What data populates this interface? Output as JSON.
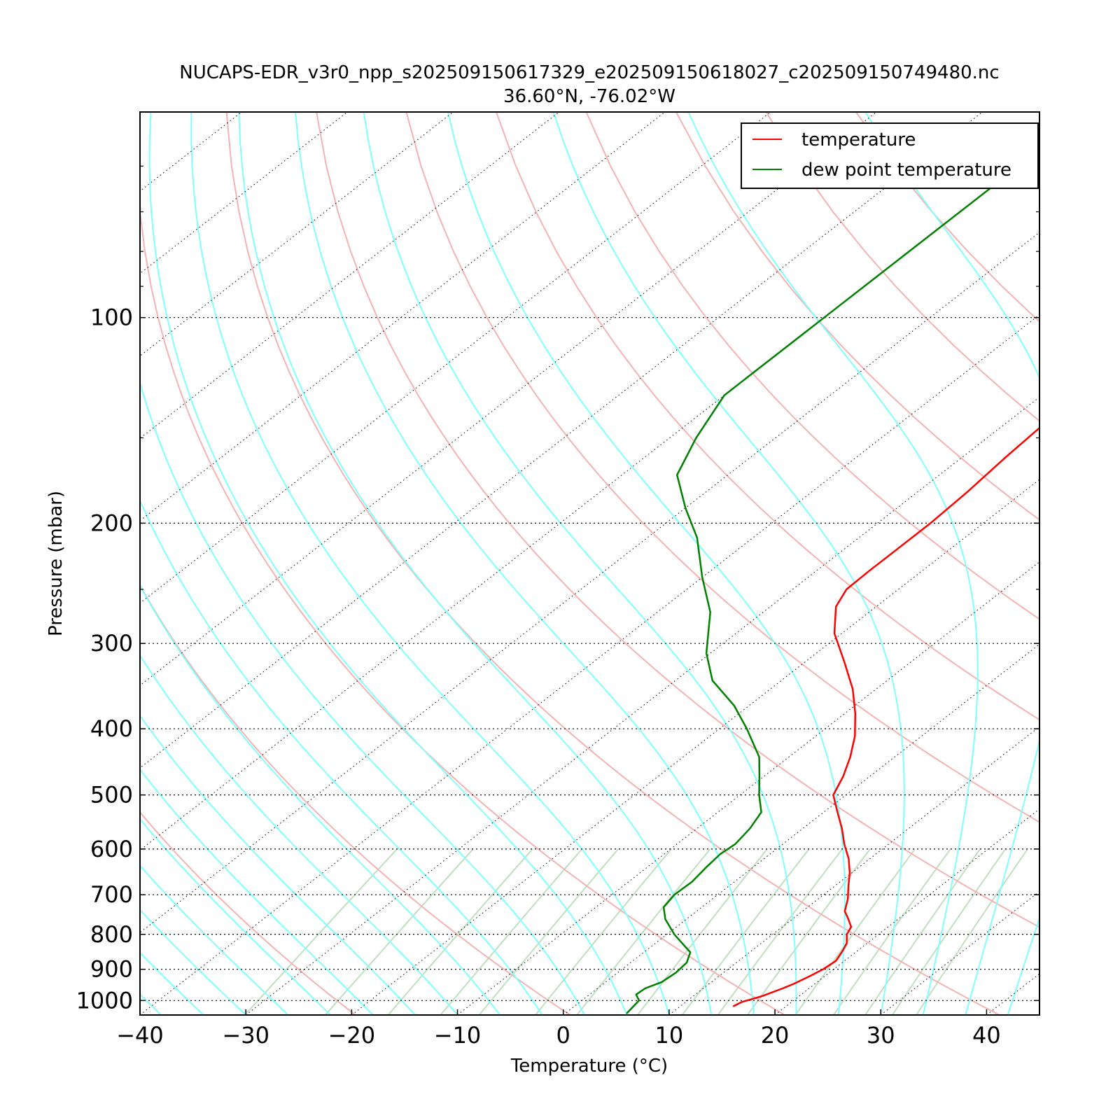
{
  "chart_data": {
    "type": "line",
    "title": "NUCAPS-EDR_v3r0_npp_s202509150617329_e202509150618027_c202509150749480.nc",
    "subtitle": "36.60°N, -76.02°W",
    "xlabel": "Temperature (°C)",
    "ylabel": "Pressure (mbar)",
    "xlim": [
      -40,
      45
    ],
    "ylim": [
      1050,
      50
    ],
    "y_scale": "log",
    "x_ticks": [
      "−40",
      "−30",
      "−20",
      "−10",
      "0",
      "10",
      "20",
      "30",
      "40"
    ],
    "y_ticks": [
      "100",
      "200",
      "300",
      "400",
      "500",
      "600",
      "700",
      "800",
      "900",
      "1000"
    ],
    "grid": "dotted horizontal at labeled pressures",
    "legend_position": "top-right",
    "skew_slope_degC_per_ln_p": 36,
    "background_lines": {
      "isotherms_color": "#bfdfbf",
      "dry_adiabats_color": "#f4b3b3",
      "moist_adiabats_color": "#80ffff",
      "skewed_isotherms_color": "#000000"
    },
    "series": [
      {
        "name": "temperature",
        "color": "#ff0000",
        "pressure": [
          1020,
          1005,
          985,
          960,
          945,
          920,
          900,
          875,
          850,
          825,
          800,
          780,
          760,
          740,
          710,
          680,
          650,
          620,
          590,
          560,
          530,
          500,
          470,
          440,
          410,
          380,
          350,
          320,
          290,
          265,
          250,
          235,
          220,
          200,
          180,
          160,
          140,
          120,
          105,
          95,
          85,
          75,
          65,
          58,
          52,
          50
        ],
        "temperature": [
          15.0,
          15.3,
          16.5,
          17.5,
          18.0,
          18.6,
          19.0,
          19.2,
          18.7,
          18.1,
          17.0,
          16.5,
          15.3,
          14.0,
          12.8,
          11.3,
          9.8,
          8.0,
          5.8,
          3.7,
          1.3,
          -1.2,
          -2.5,
          -4.2,
          -6.3,
          -9.0,
          -12.2,
          -16.2,
          -20.7,
          -23.8,
          -24.9,
          -25.0,
          -25.0,
          -25.0,
          -25.3,
          -25.9,
          -26.4,
          -26.7,
          -27.8,
          -28.1,
          -27.8,
          -26.3,
          -22.0,
          -16.5,
          -11.0,
          -9.0
        ]
      },
      {
        "name": "dew point temperature",
        "color": "#008000",
        "pressure": [
          1045,
          1000,
          980,
          960,
          940,
          910,
          880,
          850,
          820,
          800,
          760,
          730,
          700,
          670,
          640,
          610,
          590,
          560,
          530,
          500,
          470,
          440,
          400,
          370,
          340,
          310,
          270,
          240,
          210,
          190,
          170,
          150,
          130,
          125,
          120,
          100,
          80,
          60,
          50
        ],
        "temperature": [
          5.8,
          5.4,
          4.4,
          4.5,
          5.3,
          5.5,
          5.3,
          4.4,
          2.2,
          0.7,
          -2.0,
          -3.6,
          -4.1,
          -4.0,
          -4.4,
          -4.7,
          -4.5,
          -5.0,
          -5.9,
          -8.2,
          -10.4,
          -12.8,
          -17.4,
          -21.4,
          -26.5,
          -30.4,
          -35.0,
          -40.0,
          -45.3,
          -50.0,
          -54.8,
          -57.5,
          -60.0,
          -60.0,
          -60.0,
          -60.0,
          -60.0,
          -60.0,
          -60.0
        ]
      }
    ]
  }
}
